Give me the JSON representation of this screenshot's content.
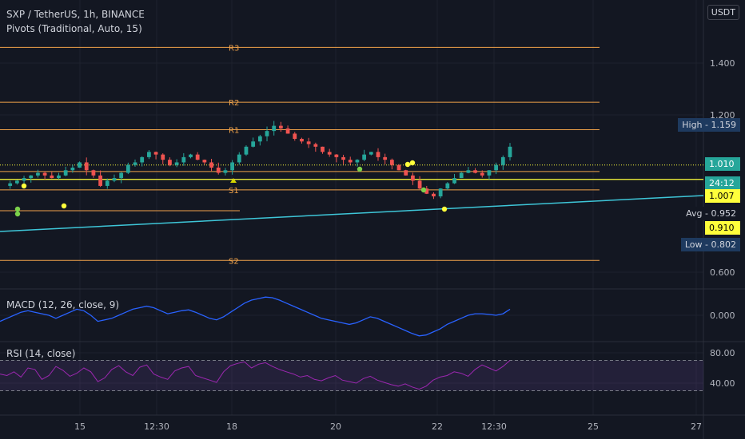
{
  "header": {
    "symbol_line": "SXP / TetherUS, 1h, BINANCE",
    "pivots_line": "Pivots (Traditional, Auto, 15)",
    "currency": "USDT"
  },
  "colors": {
    "bg": "#131722",
    "up": "#26a69a",
    "down": "#ef5350",
    "pivot": "#f0a24a",
    "yellow": "#ffff3b",
    "trend": "#3ec6d8",
    "macd": "#2962ff",
    "rsi": "#9c27b0"
  },
  "chart_data": [
    {
      "type": "candlestick",
      "y_axis_ticks": [
        "1.400",
        "1.200",
        "0.600"
      ],
      "ylim": [
        0.55,
        1.55
      ],
      "x_axis_ticks": [
        "15",
        "12:30",
        "18",
        "20",
        "22",
        "12:30",
        "25",
        "27"
      ],
      "pivot_levels": [
        {
          "label": "R3",
          "value": 1.46
        },
        {
          "label": "R2",
          "value": 1.25
        },
        {
          "label": "R1",
          "value": 1.145
        },
        {
          "label": "",
          "value": 0.985
        },
        {
          "label": "S1",
          "value": 0.915
        },
        {
          "label": "",
          "value": 0.835
        },
        {
          "label": "S2",
          "value": 0.645
        }
      ],
      "price_tags": [
        {
          "text": "High - 1.159",
          "style": "dark"
        },
        {
          "text": "1.010",
          "style": "green"
        },
        {
          "text": "24:12",
          "style": "green"
        },
        {
          "text": "1.007",
          "style": "yellow"
        },
        {
          "text": "Avg - 0.952",
          "style": "plain"
        },
        {
          "text": "0.910",
          "style": "yellow"
        },
        {
          "text": "Low - 0.802",
          "style": "dark"
        }
      ],
      "price_path": [
        0.93,
        0.94,
        0.95,
        0.96,
        0.97,
        0.98,
        0.97,
        0.96,
        0.97,
        0.99,
        1.0,
        1.02,
        0.99,
        0.97,
        0.93,
        0.95,
        0.96,
        0.98,
        1.01,
        1.02,
        1.04,
        1.06,
        1.05,
        1.03,
        1.01,
        1.02,
        1.04,
        1.05,
        1.03,
        1.02,
        1.0,
        0.98,
        0.99,
        1.02,
        1.05,
        1.08,
        1.1,
        1.12,
        1.14,
        1.16,
        1.15,
        1.13,
        1.11,
        1.1,
        1.09,
        1.08,
        1.06,
        1.05,
        1.04,
        1.03,
        1.02,
        1.03,
        1.05,
        1.06,
        1.04,
        1.03,
        1.01,
        0.99,
        0.97,
        0.95,
        0.92,
        0.9,
        0.89,
        0.92,
        0.94,
        0.96,
        0.98,
        0.99,
        0.98,
        0.97,
        0.99,
        1.01,
        1.04,
        1.08
      ]
    },
    {
      "type": "line",
      "title": "MACD (12, 26, close, 9)",
      "y_axis_ticks": [
        "0.000"
      ],
      "values": [
        -0.02,
        -0.01,
        0.0,
        0.01,
        0.015,
        0.01,
        0.005,
        0.0,
        -0.01,
        0.0,
        0.01,
        0.02,
        0.015,
        0.0,
        -0.02,
        -0.015,
        -0.01,
        0.0,
        0.01,
        0.02,
        0.025,
        0.03,
        0.025,
        0.015,
        0.005,
        0.01,
        0.015,
        0.018,
        0.01,
        0.0,
        -0.01,
        -0.015,
        -0.005,
        0.01,
        0.025,
        0.04,
        0.05,
        0.055,
        0.06,
        0.058,
        0.05,
        0.04,
        0.03,
        0.02,
        0.01,
        0.0,
        -0.01,
        -0.015,
        -0.02,
        -0.025,
        -0.03,
        -0.025,
        -0.015,
        -0.005,
        -0.01,
        -0.02,
        -0.03,
        -0.04,
        -0.05,
        -0.06,
        -0.068,
        -0.065,
        -0.055,
        -0.045,
        -0.03,
        -0.02,
        -0.01,
        0.0,
        0.005,
        0.005,
        0.003,
        0.0,
        0.005,
        0.02
      ]
    },
    {
      "type": "line",
      "title": "RSI (14, close)",
      "y_axis_ticks": [
        "80.00",
        "40.00"
      ],
      "ylim": [
        20,
        95
      ],
      "band": [
        30,
        70
      ],
      "values": [
        52,
        50,
        55,
        48,
        60,
        58,
        45,
        50,
        62,
        57,
        49,
        53,
        60,
        55,
        42,
        47,
        58,
        63,
        55,
        50,
        61,
        64,
        52,
        48,
        45,
        56,
        60,
        62,
        50,
        47,
        44,
        41,
        55,
        63,
        66,
        68,
        60,
        65,
        67,
        62,
        58,
        55,
        52,
        48,
        50,
        45,
        43,
        47,
        50,
        44,
        42,
        40,
        46,
        49,
        44,
        41,
        38,
        36,
        39,
        35,
        32,
        36,
        44,
        48,
        50,
        55,
        53,
        49,
        58,
        64,
        60,
        56,
        62,
        70
      ]
    }
  ]
}
